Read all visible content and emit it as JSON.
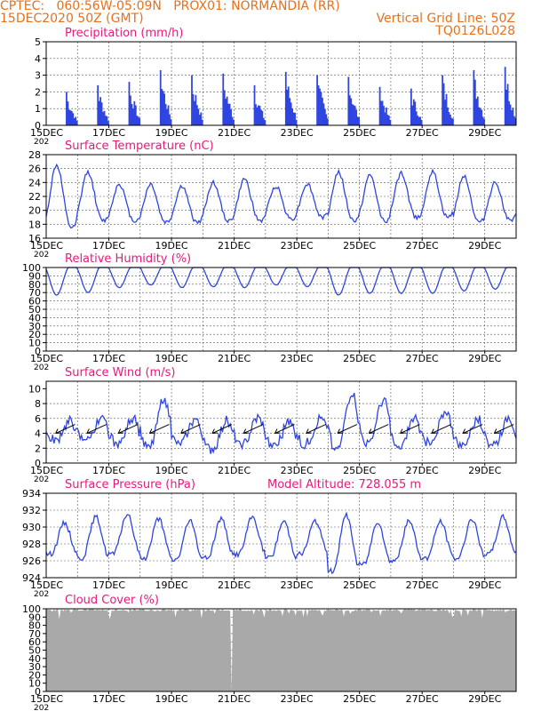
{
  "colors": {
    "header": "#e8701a",
    "panel_title": "#e6197d",
    "series": "#2f45e0",
    "cloud": "#a9a9a9",
    "wind_arrow": "#000000",
    "grid": "#555555"
  },
  "header": {
    "line1_left": "CPTEC:   060:56W-05:09N   PROX01: NORMANDIA (RR)",
    "line2_left": "15DEC2020 50Z (GMT)",
    "line1_right": "Vertical Grid Line: 50Z",
    "line2_right": "TQ0126L028"
  },
  "chart_data": [
    {
      "type": "bar",
      "name": "precipitation",
      "title": "Precipitation (mm/h)",
      "ylim": [
        0,
        5
      ],
      "yticks": [
        0,
        1,
        2,
        3,
        4,
        5
      ],
      "x_start_label": "15DEC",
      "x_start_year": "202",
      "xticks": [
        "17DEC",
        "19DEC",
        "21DEC",
        "23DEC",
        "25DEC",
        "27DEC",
        "29DEC"
      ],
      "x_days": [
        0.5,
        1.5,
        2.5,
        3.5,
        4.5,
        5.5,
        6.5,
        7.5,
        8.5,
        9.5,
        10.5,
        11.5,
        12.5,
        13.5,
        14.5
      ],
      "values": [
        2.0,
        2.4,
        2.6,
        3.3,
        3.0,
        3.1,
        2.4,
        3.2,
        3.0,
        2.9,
        2.3,
        2.2,
        3.0,
        3.3,
        3.5
      ]
    },
    {
      "type": "line",
      "name": "temperature",
      "title": "Surface Temperature (nC)",
      "ylim": [
        16,
        28
      ],
      "yticks": [
        16,
        18,
        20,
        22,
        24,
        26,
        28
      ],
      "x_start_label": "15DEC",
      "x_start_year": "202",
      "xticks": [
        "17DEC",
        "19DEC",
        "21DEC",
        "23DEC",
        "25DEC",
        "27DEC",
        "29DEC"
      ],
      "daily_max": [
        26.5,
        25.5,
        23.8,
        23.8,
        23.5,
        24.0,
        24.5,
        23.5,
        23.8,
        25.5,
        25.0,
        25.3,
        25.5,
        25.0,
        24.0
      ],
      "daily_min": [
        17.5,
        18.5,
        18.5,
        18.3,
        18.3,
        18.5,
        18.5,
        18.8,
        19.0,
        18.5,
        18.5,
        19.0,
        19.0,
        18.3,
        18.5
      ]
    },
    {
      "type": "line",
      "name": "humidity",
      "title": "Relative Humidity (%)",
      "ylim": [
        0,
        100
      ],
      "yticks": [
        0,
        10,
        20,
        30,
        40,
        50,
        60,
        70,
        80,
        90,
        100
      ],
      "x_start_label": "15DEC",
      "x_start_year": "202",
      "xticks": [
        "17DEC",
        "19DEC",
        "21DEC",
        "23DEC",
        "25DEC",
        "27DEC",
        "29DEC"
      ],
      "daily_min": [
        63,
        66,
        72,
        75,
        72,
        73,
        72,
        75,
        73,
        63,
        65,
        65,
        65,
        68,
        70
      ]
    },
    {
      "type": "line",
      "name": "wind",
      "title": "Surface Wind (m/s)",
      "ylim": [
        0,
        11
      ],
      "yticks": [
        0,
        2,
        4,
        6,
        8,
        10
      ],
      "x_start_label": "15DEC",
      "x_start_year": "202",
      "xticks": [
        "17DEC",
        "19DEC",
        "21DEC",
        "23DEC",
        "25DEC",
        "27DEC",
        "29DEC"
      ],
      "daily_max": [
        5.6,
        5.8,
        6.0,
        8.5,
        6.0,
        5.5,
        6.0,
        5.5,
        6.2,
        9.5,
        8.5,
        6.0,
        7.0,
        5.8,
        6.0
      ],
      "daily_min": [
        3.0,
        3.2,
        2.5,
        2.0,
        2.5,
        2.0,
        2.5,
        2.3,
        2.5,
        1.8,
        2.5,
        2.0,
        2.5,
        2.5,
        2.5
      ],
      "arrows_per_day": 1
    },
    {
      "type": "line",
      "name": "pressure",
      "title": "Surface Pressure (hPa)",
      "annotation": "Model Altitude: 728.055 m",
      "ylim": [
        924,
        934
      ],
      "yticks": [
        924,
        926,
        928,
        930,
        932,
        934
      ],
      "x_start_label": "15DEC",
      "x_start_year": "202",
      "xticks": [
        "17DEC",
        "19DEC",
        "21DEC",
        "23DEC",
        "25DEC",
        "27DEC",
        "29DEC"
      ],
      "daily_max": [
        931.3,
        932.0,
        932.3,
        931.8,
        931.5,
        931.8,
        932.0,
        931.5,
        931.5,
        932.2,
        931.5,
        931.5,
        931.5,
        931.8,
        932.0
      ],
      "daily_min": [
        926.0,
        925.5,
        926.0,
        925.5,
        925.3,
        925.5,
        926.0,
        925.5,
        926.0,
        924.0,
        924.8,
        925.3,
        925.5,
        925.5,
        926.0
      ]
    },
    {
      "type": "area",
      "name": "cloud",
      "title": "Cloud Cover (%)",
      "ylim": [
        0,
        100
      ],
      "yticks": [
        0,
        10,
        20,
        30,
        40,
        50,
        60,
        70,
        80,
        90,
        100
      ],
      "x_start_label": "15DEC",
      "x_start_year": "202",
      "xticks": [
        "17DEC",
        "19DEC",
        "21DEC",
        "23DEC",
        "25DEC",
        "27DEC",
        "29DEC"
      ],
      "typical_value": 97,
      "dip_day": 5.9
    }
  ]
}
